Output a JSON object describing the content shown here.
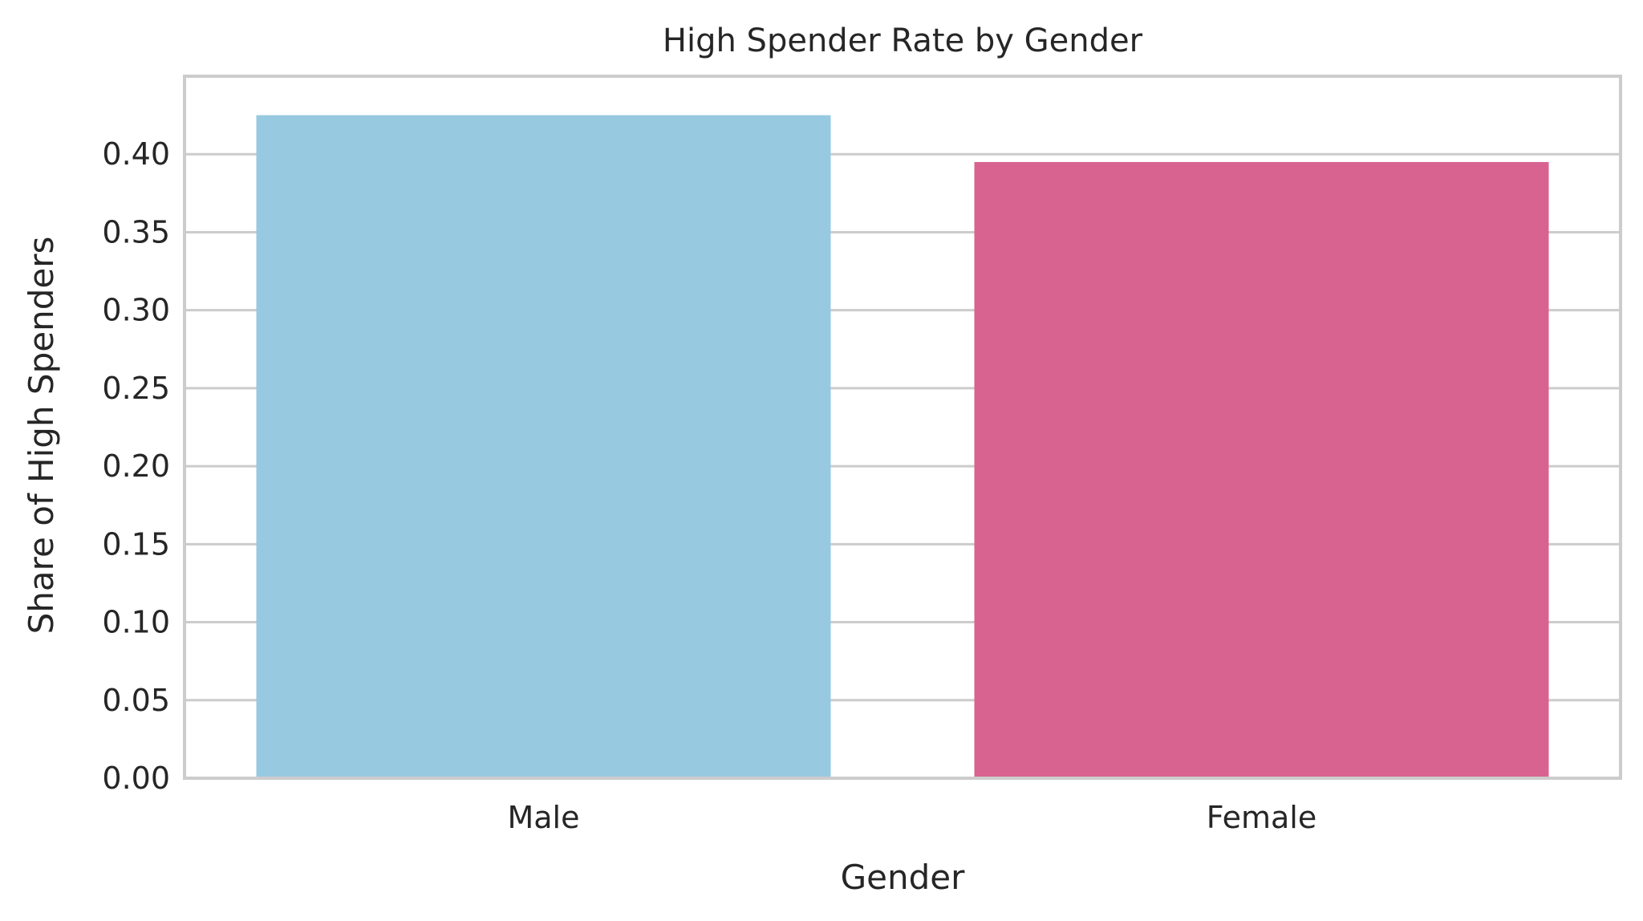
{
  "chart_data": {
    "type": "bar",
    "title": "High Spender Rate by Gender",
    "xlabel": "Gender",
    "ylabel": "Share of High Spenders",
    "categories": [
      "Male",
      "Female"
    ],
    "values": [
      0.425,
      0.395
    ],
    "bar_colors": [
      "#97c9e1",
      "#d86391"
    ],
    "ylim": [
      0,
      0.45
    ],
    "yticks": [
      0.0,
      0.05,
      0.1,
      0.15,
      0.2,
      0.25,
      0.3,
      0.35,
      0.4
    ],
    "ytick_labels": [
      "0.00",
      "0.05",
      "0.10",
      "0.15",
      "0.20",
      "0.25",
      "0.30",
      "0.35",
      "0.40"
    ],
    "grid": "horizontal",
    "legend": "none"
  }
}
